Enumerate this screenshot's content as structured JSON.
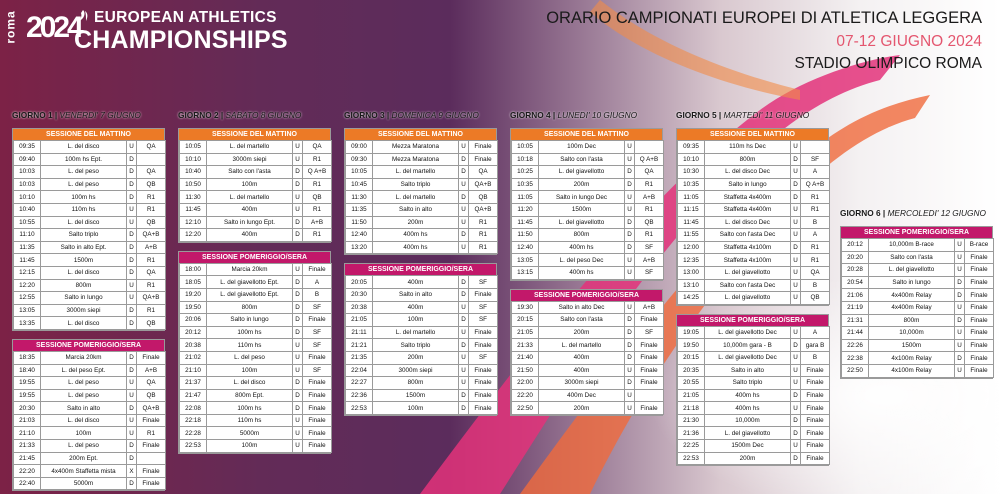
{
  "logo": {
    "roma": "roma",
    "year": "2024",
    "line1": "EUROPEAN ATHLETICS",
    "line2": "CHAMPIONSHIPS"
  },
  "header": {
    "title": "ORARIO CAMPIONATI EUROPEI DI ATLETICA LEGGERA",
    "dates": "07-12 GIUGNO 2024",
    "venue": "STADIO OLIMPICO ROMA"
  },
  "colors": {
    "morning": "#ec7a26",
    "afternoon": "#c2186a",
    "date_accent": "#e4566f"
  },
  "days": [
    {
      "label": "GIORNO 1",
      "date": "VENERDI' 7 GIUGNO",
      "sessions": [
        {
          "name": "SESSIONE DEL MATTINO",
          "rows": [
            [
              "09:35",
              "L. del disco",
              "U",
              "QA"
            ],
            [
              "09:40",
              "100m hs Ept.",
              "D",
              ""
            ],
            [
              "10:03",
              "L. del peso",
              "D",
              "QA"
            ],
            [
              "10:03",
              "L. del peso",
              "D",
              "QB"
            ],
            [
              "10:10",
              "100m hs",
              "D",
              "R1"
            ],
            [
              "10:40",
              "110m hs",
              "U",
              "R1"
            ],
            [
              "10:55",
              "L. del disco",
              "U",
              "QB"
            ],
            [
              "11:10",
              "Salto triplo",
              "D",
              "QA+B"
            ],
            [
              "11:35",
              "Salto in alto Ept.",
              "D",
              "A+B"
            ],
            [
              "11:45",
              "1500m",
              "D",
              "R1"
            ],
            [
              "12:15",
              "L. del disco",
              "D",
              "QA"
            ],
            [
              "12:20",
              "800m",
              "U",
              "R1"
            ],
            [
              "12:55",
              "Salto in lungo",
              "U",
              "QA+B"
            ],
            [
              "13:05",
              "3000m siepi",
              "D",
              "R1"
            ],
            [
              "13:35",
              "L. del disco",
              "D",
              "QB"
            ]
          ]
        },
        {
          "name": "SESSIONE POMERIGGIO/SERA",
          "rows": [
            [
              "18:35",
              "Marcia 20km",
              "D",
              "Finale"
            ],
            [
              "18:40",
              "L. del peso Ept.",
              "D",
              "A+B"
            ],
            [
              "19:55",
              "L. del peso",
              "U",
              "QA"
            ],
            [
              "19:55",
              "L. del peso",
              "U",
              "QB"
            ],
            [
              "20:30",
              "Salto in alto",
              "D",
              "QA+B"
            ],
            [
              "21:03",
              "L. del disco",
              "U",
              "Finale"
            ],
            [
              "21:10",
              "100m",
              "U",
              "R1"
            ],
            [
              "21:33",
              "L. del peso",
              "D",
              "Finale"
            ],
            [
              "21:45",
              "200m Ept.",
              "D",
              ""
            ],
            [
              "22:20",
              "4x400m Staffetta mista",
              "X",
              "Finale"
            ],
            [
              "22:40",
              "5000m",
              "D",
              "Finale"
            ]
          ]
        }
      ]
    },
    {
      "label": "GIORNO 2",
      "date": "SABATO 8 GIUGNO",
      "sessions": [
        {
          "name": "SESSIONE DEL MATTINO",
          "rows": [
            [
              "10:05",
              "L. del martello",
              "U",
              "QA"
            ],
            [
              "10:10",
              "3000m siepi",
              "U",
              "R1"
            ],
            [
              "10:40",
              "Salto con l'asta",
              "D",
              "Q A+B"
            ],
            [
              "10:50",
              "100m",
              "D",
              "R1"
            ],
            [
              "11:30",
              "L. del martello",
              "U",
              "QB"
            ],
            [
              "11:45",
              "400m",
              "U",
              "R1"
            ],
            [
              "12:10",
              "Salto in lungo Ept.",
              "D",
              "A+B"
            ],
            [
              "12:20",
              "400m",
              "D",
              "R1"
            ]
          ]
        },
        {
          "name": "SESSIONE POMERIGGIO/SERA",
          "rows": [
            [
              "18:00",
              "Marcia 20km",
              "U",
              "Finale"
            ],
            [
              "18:05",
              "L. del giavellotto Ept.",
              "D",
              "A"
            ],
            [
              "19:20",
              "L. del giavellotto Ept.",
              "D",
              "B"
            ],
            [
              "19:50",
              "800m",
              "D",
              "SF"
            ],
            [
              "20:06",
              "Salto in lungo",
              "D",
              "Finale"
            ],
            [
              "20:12",
              "100m hs",
              "D",
              "SF"
            ],
            [
              "20:38",
              "110m hs",
              "U",
              "SF"
            ],
            [
              "21:02",
              "L. del peso",
              "U",
              "Finale"
            ],
            [
              "21:10",
              "100m",
              "U",
              "SF"
            ],
            [
              "21:37",
              "L. del disco",
              "D",
              "Finale"
            ],
            [
              "21:47",
              "800m Ept.",
              "D",
              "Finale"
            ],
            [
              "22:08",
              "100m hs",
              "D",
              "Finale"
            ],
            [
              "22:18",
              "110m hs",
              "U",
              "Finale"
            ],
            [
              "22:28",
              "5000m",
              "U",
              "Finale"
            ],
            [
              "22:53",
              "100m",
              "U",
              "Finale"
            ]
          ]
        }
      ]
    },
    {
      "label": "GIORNO 3",
      "date": "DOMENICA 9 GIUGNO",
      "sessions": [
        {
          "name": "SESSIONE DEL MATTINO",
          "rows": [
            [
              "09:00",
              "Mezza Maratona",
              "U",
              "Finale"
            ],
            [
              "09:30",
              "Mezza Maratona",
              "D",
              "Finale"
            ],
            [
              "10:05",
              "L. del martello",
              "D",
              "QA"
            ],
            [
              "10:45",
              "Salto triplo",
              "U",
              "QA+B"
            ],
            [
              "11:30",
              "L. del martello",
              "D",
              "QB"
            ],
            [
              "11:35",
              "Salto in alto",
              "U",
              "QA+B"
            ],
            [
              "11:50",
              "200m",
              "U",
              "R1"
            ],
            [
              "12:40",
              "400m hs",
              "D",
              "R1"
            ],
            [
              "13:20",
              "400m hs",
              "U",
              "R1"
            ]
          ]
        },
        {
          "name": "SESSIONE POMERIGGIO/SERA",
          "rows": [
            [
              "20:05",
              "400m",
              "D",
              "SF"
            ],
            [
              "20:30",
              "Salto in alto",
              "D",
              "Finale"
            ],
            [
              "20:38",
              "400m",
              "U",
              "SF"
            ],
            [
              "21:05",
              "100m",
              "D",
              "SF"
            ],
            [
              "21:11",
              "L. del martello",
              "U",
              "Finale"
            ],
            [
              "21:21",
              "Salto triplo",
              "D",
              "Finale"
            ],
            [
              "21:35",
              "200m",
              "U",
              "SF"
            ],
            [
              "22:04",
              "3000m siepi",
              "U",
              "Finale"
            ],
            [
              "22:27",
              "800m",
              "U",
              "Finale"
            ],
            [
              "22:36",
              "1500m",
              "D",
              "Finale"
            ],
            [
              "22:53",
              "100m",
              "D",
              "Finale"
            ]
          ]
        }
      ]
    },
    {
      "label": "GIORNO 4",
      "date": "LUNEDI' 10 GIUGNO",
      "sessions": [
        {
          "name": "SESSIONE DEL MATTINO",
          "rows": [
            [
              "10:05",
              "100m Dec",
              "U",
              ""
            ],
            [
              "10:18",
              "Salto con l'asta",
              "U",
              "Q A+B"
            ],
            [
              "10:25",
              "L. del giavellotto",
              "D",
              "QA"
            ],
            [
              "10:35",
              "200m",
              "D",
              "R1"
            ],
            [
              "11:05",
              "Salto in lungo Dec",
              "U",
              "A+B"
            ],
            [
              "11:20",
              "1500m",
              "U",
              "R1"
            ],
            [
              "11:45",
              "L. del giavellotto",
              "D",
              "QB"
            ],
            [
              "11:50",
              "800m",
              "D",
              "R1"
            ],
            [
              "12:40",
              "400m hs",
              "D",
              "SF"
            ],
            [
              "13:05",
              "L. del peso Dec",
              "U",
              "A+B"
            ],
            [
              "13:15",
              "400m hs",
              "U",
              "SF"
            ]
          ]
        },
        {
          "name": "SESSIONE POMERIGGIO/SERA",
          "rows": [
            [
              "19:30",
              "Salto in alto Dec",
              "U",
              "A+B"
            ],
            [
              "20:15",
              "Salto con l'asta",
              "D",
              "Finale"
            ],
            [
              "21:05",
              "200m",
              "D",
              "SF"
            ],
            [
              "21:33",
              "L. del martello",
              "D",
              "Finale"
            ],
            [
              "21:40",
              "400m",
              "D",
              "Finale"
            ],
            [
              "21:50",
              "400m",
              "U",
              "Finale"
            ],
            [
              "22:00",
              "3000m siepi",
              "D",
              "Finale"
            ],
            [
              "22:20",
              "400m Dec",
              "U",
              ""
            ],
            [
              "22:50",
              "200m",
              "U",
              "Finale"
            ]
          ]
        }
      ]
    },
    {
      "label": "GIORNO 5",
      "date": "MARTEDI' 11 GIUGNO",
      "sessions": [
        {
          "name": "SESSIONE DEL MATTINO",
          "rows": [
            [
              "09:35",
              "110m hs Dec",
              "U",
              ""
            ],
            [
              "10:10",
              "800m",
              "D",
              "SF"
            ],
            [
              "10:30",
              "L. del disco Dec",
              "U",
              "A"
            ],
            [
              "10:35",
              "Salto in lungo",
              "D",
              "Q A+B"
            ],
            [
              "11:05",
              "Staffetta 4x400m",
              "D",
              "R1"
            ],
            [
              "11:15",
              "Staffetta 4x400m",
              "U",
              "R1"
            ],
            [
              "11:45",
              "L. del disco Dec",
              "U",
              "B"
            ],
            [
              "11:55",
              "Salto con l'asta Dec",
              "U",
              "A"
            ],
            [
              "12:00",
              "Staffetta 4x100m",
              "D",
              "R1"
            ],
            [
              "12:35",
              "Staffetta 4x100m",
              "U",
              "R1"
            ],
            [
              "13:00",
              "L. del giavellotto",
              "U",
              "QA"
            ],
            [
              "13:10",
              "Salto con l'asta Dec",
              "U",
              "B"
            ],
            [
              "14:25",
              "L. del giavellotto",
              "U",
              "QB"
            ]
          ]
        },
        {
          "name": "SESSIONE POMERIGGIO/SERA",
          "rows": [
            [
              "19:05",
              "L. del giavellotto Dec",
              "U",
              "A"
            ],
            [
              "19:50",
              "10,000m gara - B",
              "D",
              "gara B"
            ],
            [
              "20:15",
              "L. del giavellotto Dec",
              "U",
              "B"
            ],
            [
              "20:35",
              "Salto in alto",
              "U",
              "Finale"
            ],
            [
              "20:55",
              "Salto triplo",
              "U",
              "Finale"
            ],
            [
              "21:05",
              "400m hs",
              "D",
              "Finale"
            ],
            [
              "21:18",
              "400m hs",
              "U",
              "Finale"
            ],
            [
              "21:30",
              "10,000m",
              "D",
              "Finale"
            ],
            [
              "21:36",
              "L. del giavellotto",
              "D",
              "Finale"
            ],
            [
              "22:25",
              "1500m Dec",
              "U",
              "Finale"
            ],
            [
              "22:53",
              "200m",
              "D",
              "Finale"
            ]
          ]
        }
      ]
    },
    {
      "label": "GIORNO 6",
      "date": "MERCOLEDI' 12 GIUGNO",
      "sessions": [
        {
          "name": "SESSIONE POMERIGGIO/SERA",
          "rows": [
            [
              "20:12",
              "10,000m B-race",
              "U",
              "B-race"
            ],
            [
              "20:20",
              "Salto con l'asta",
              "U",
              "Finale"
            ],
            [
              "20:28",
              "L. del giavellotto",
              "U",
              "Finale"
            ],
            [
              "20:54",
              "Salto in lungo",
              "D",
              "Finale"
            ],
            [
              "21:06",
              "4x400m Relay",
              "D",
              "Finale"
            ],
            [
              "21:19",
              "4x400m Relay",
              "U",
              "Finale"
            ],
            [
              "21:31",
              "800m",
              "D",
              "Finale"
            ],
            [
              "21:44",
              "10,000m",
              "U",
              "Finale"
            ],
            [
              "22:26",
              "1500m",
              "U",
              "Finale"
            ],
            [
              "22:38",
              "4x100m Relay",
              "D",
              "Finale"
            ],
            [
              "22:50",
              "4x100m Relay",
              "U",
              "Finale"
            ]
          ]
        }
      ]
    }
  ]
}
